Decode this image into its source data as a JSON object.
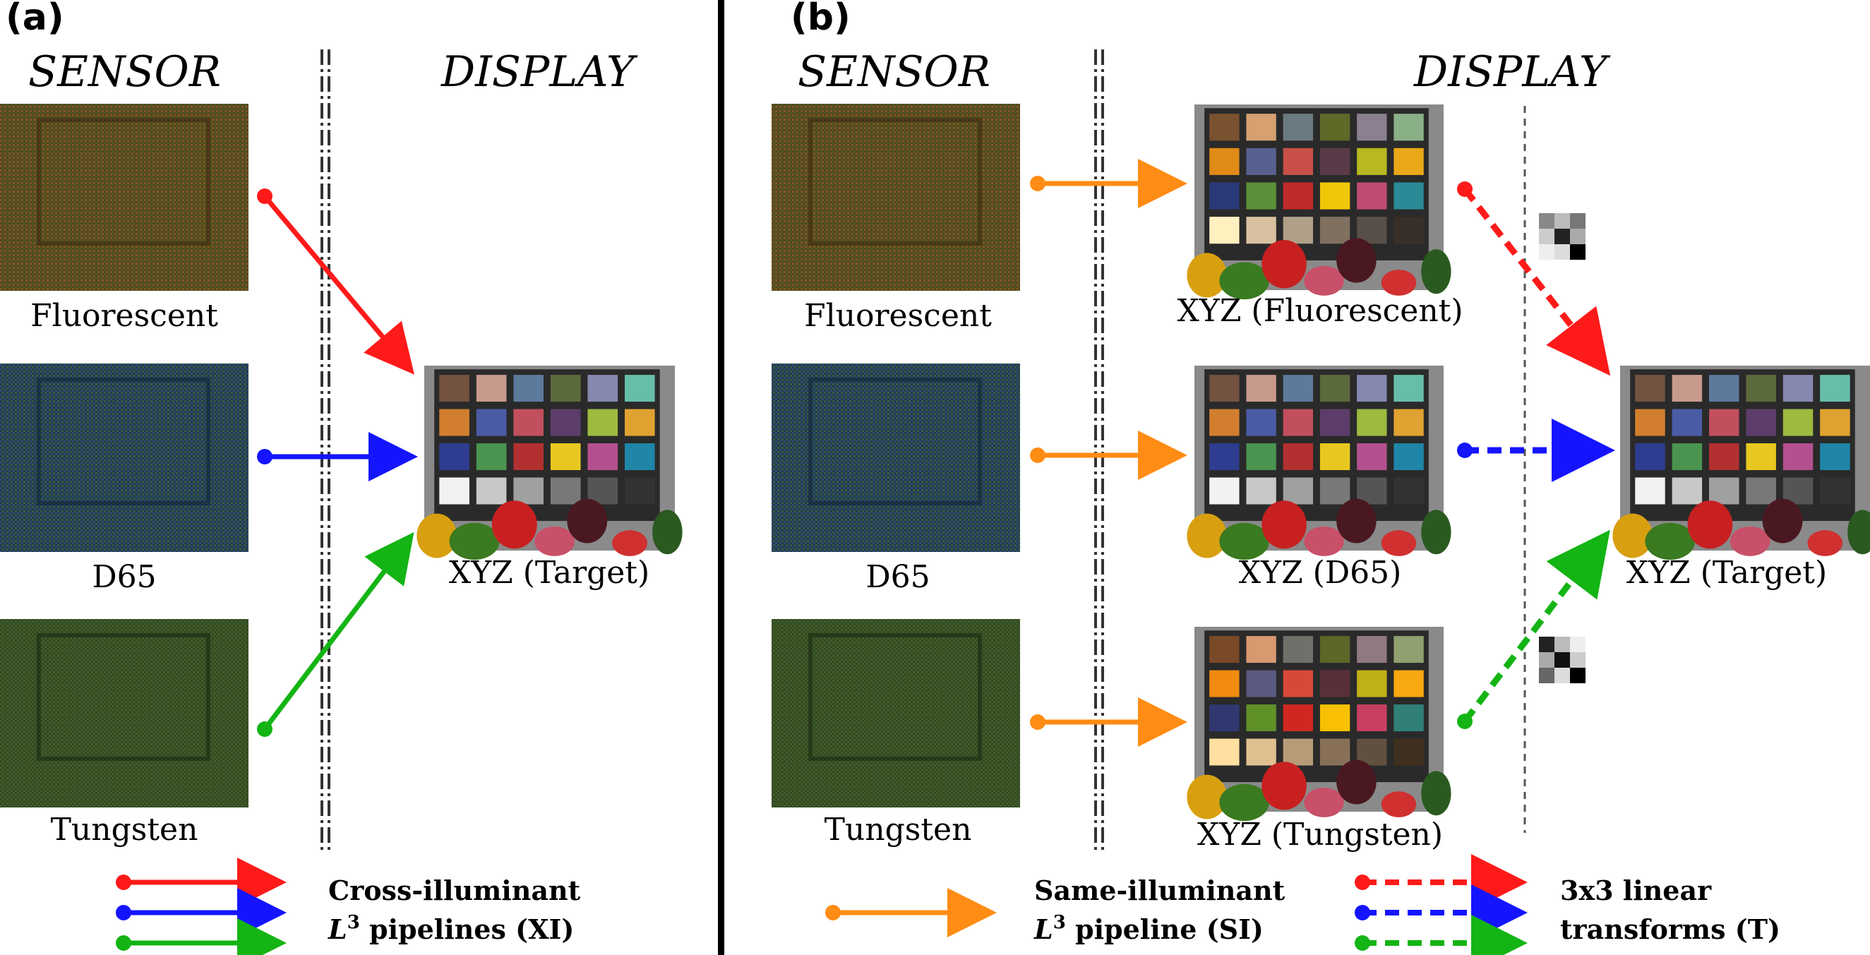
{
  "panel_a": {
    "label": "(a)",
    "sensor_heading": "SENSOR",
    "display_heading": "DISPLAY",
    "sensor_images": [
      "Fluorescent",
      "D65",
      "Tungsten"
    ],
    "target_caption": "XYZ (Target)",
    "legend_line1": "Cross-illuminant",
    "legend_line2_symbol": "L",
    "legend_line2_sup": "3",
    "legend_line2_rest": " pipelines (XI)"
  },
  "panel_b": {
    "label": "(b)",
    "sensor_heading": "SENSOR",
    "display_heading": "DISPLAY",
    "sensor_images": [
      "Fluorescent",
      "D65",
      "Tungsten"
    ],
    "xyz_captions": [
      "XYZ (Fluorescent)",
      "XYZ (D65)",
      "XYZ (Tungsten)"
    ],
    "target_caption": "XYZ (Target)",
    "legend_si_line1": "Same-illuminant",
    "legend_si_line2_symbol": "L",
    "legend_si_line2_sup": "3",
    "legend_si_line2_rest": " pipeline (SI)",
    "legend_t_line1": "3x3 linear",
    "legend_t_line2": "transforms (T)"
  },
  "colors": {
    "red": "#ff1a1a",
    "blue": "#1414ff",
    "green": "#14b414",
    "orange": "#ff8c14",
    "divider": "#000000",
    "dashed_line": "#333333"
  },
  "icons": {
    "sensor_mosaic": "raw-sensor-mosaic-image",
    "color_checker": "color-checker-chart-image",
    "matrix": "3x3-matrix-grayscale-icon"
  }
}
